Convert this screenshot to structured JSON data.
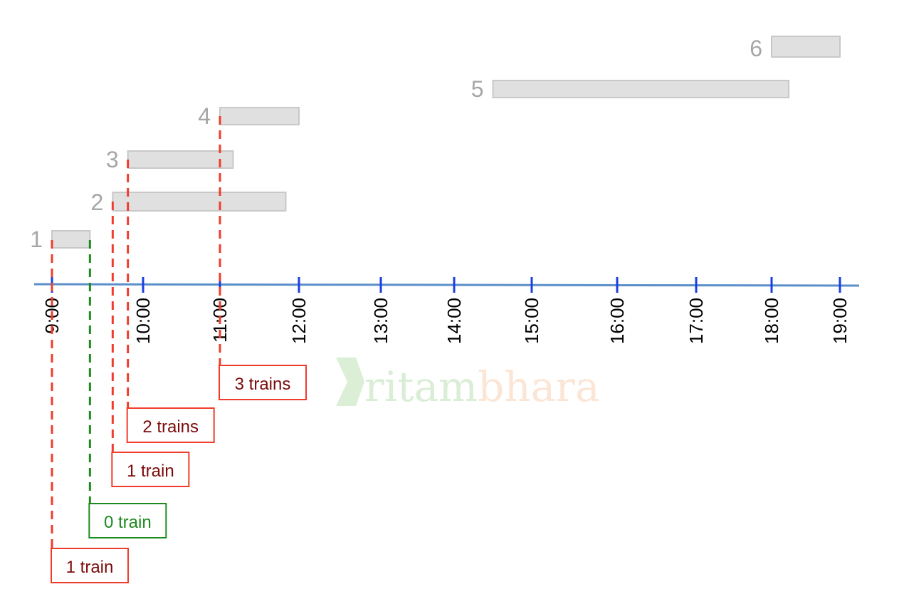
{
  "timeline": {
    "ticks": [
      "9:00",
      "10:00",
      "11:00",
      "12:00",
      "13:00",
      "14:00",
      "15:00",
      "16:00",
      "17:00",
      "18:00",
      "19:00"
    ],
    "axis_color": "#5b8fc9",
    "tick_color": "#1a3fe0"
  },
  "trains": [
    {
      "label": "1",
      "arrival": "9:00",
      "departure": "9:25"
    },
    {
      "label": "2",
      "arrival": "9:40",
      "departure": "11:50"
    },
    {
      "label": "3",
      "arrival": "9:50",
      "departure": "11:10"
    },
    {
      "label": "4",
      "arrival": "11:00",
      "departure": "12:00"
    },
    {
      "label": "5",
      "arrival": "14:30",
      "departure": "18:15"
    },
    {
      "label": "6",
      "arrival": "18:00",
      "departure": "19:00"
    }
  ],
  "markers": [
    {
      "time": "9:00",
      "label": "1 train",
      "kind": "arrival"
    },
    {
      "time": "9:25",
      "label": "0 train",
      "kind": "departure"
    },
    {
      "time": "9:40",
      "label": "1 train",
      "kind": "arrival"
    },
    {
      "time": "9:50",
      "label": "2 trains",
      "kind": "arrival"
    },
    {
      "time": "11:00",
      "label": "3 trains",
      "kind": "arrival"
    }
  ],
  "colors": {
    "arrival_line": "#f03c2c",
    "arrival_text": "#7a0a0a",
    "departure_line": "#1e8a1e",
    "departure_text": "#1e8a1e",
    "bar_fill": "#e0e0e0",
    "bar_stroke": "#c8c8c8",
    "train_number": "#a6a6a6"
  },
  "watermark": {
    "part1": "ritam",
    "part2": "bhara",
    "color1": "#7cc26a",
    "color2": "#f4a46a"
  }
}
